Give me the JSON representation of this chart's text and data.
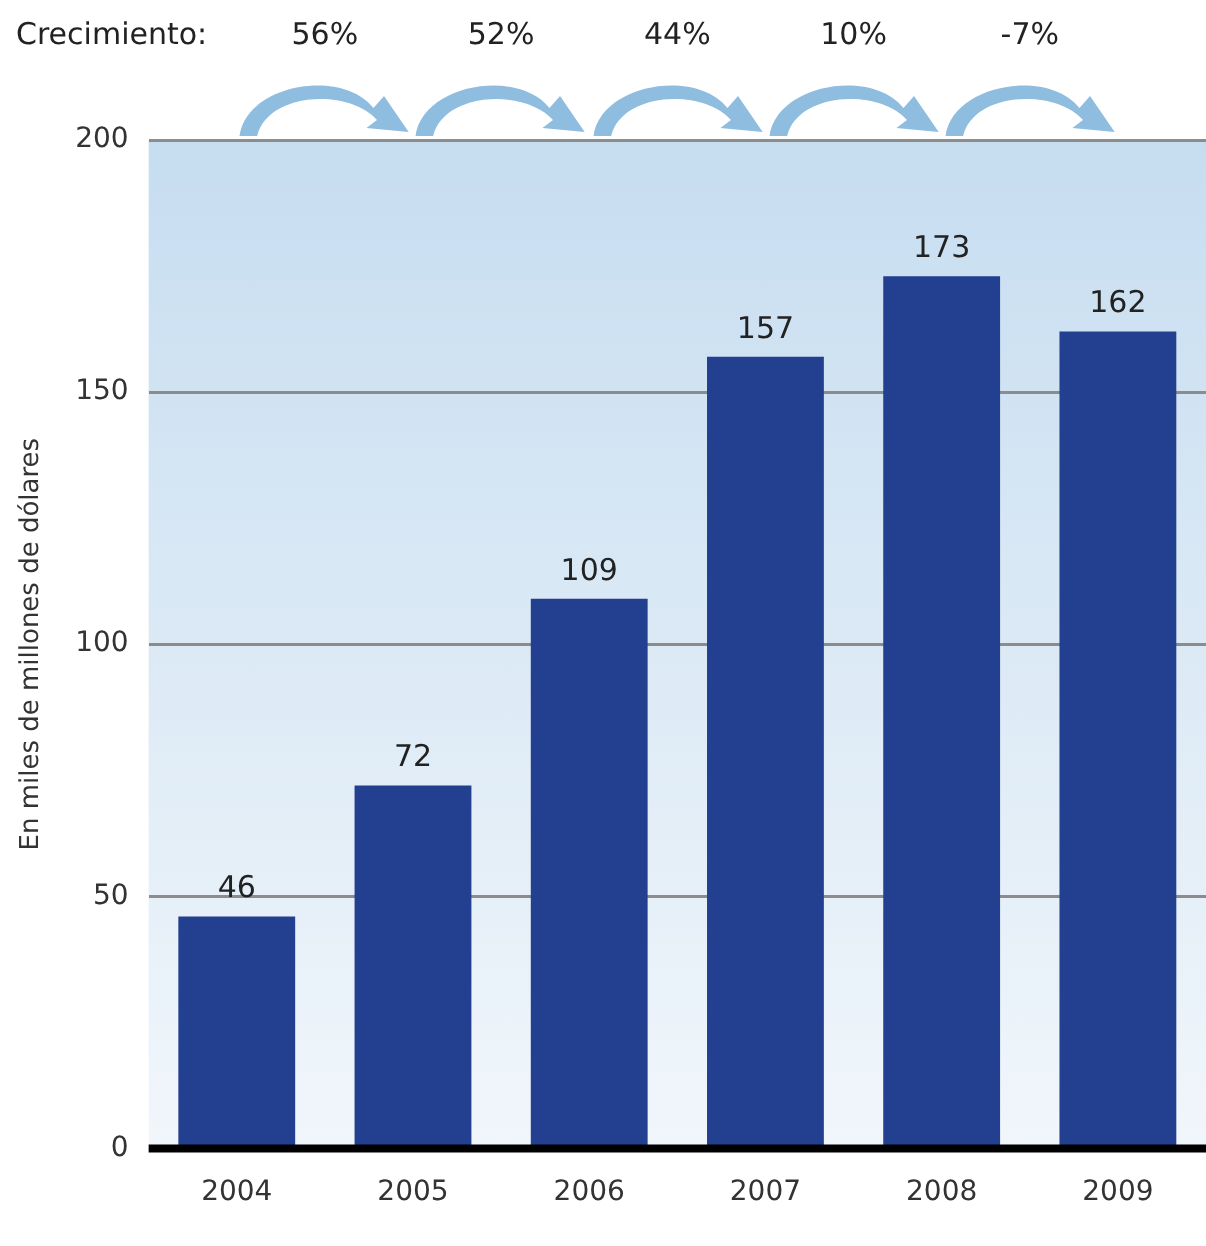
{
  "chart_data": {
    "type": "bar",
    "ylabel": "En miles de millones de dólares",
    "categories": [
      "2004",
      "2005",
      "2006",
      "2007",
      "2008",
      "2009"
    ],
    "values": [
      46,
      72,
      109,
      157,
      173,
      162
    ],
    "color": "#233f8f",
    "ylim": [
      0,
      200
    ],
    "yticks": [
      0,
      50,
      100,
      150,
      200
    ],
    "grid": "y",
    "data_labels": true,
    "annotations": [
      "Crecimiento:",
      "56%",
      "52%",
      "44%",
      "10%",
      "-7%"
    ]
  }
}
